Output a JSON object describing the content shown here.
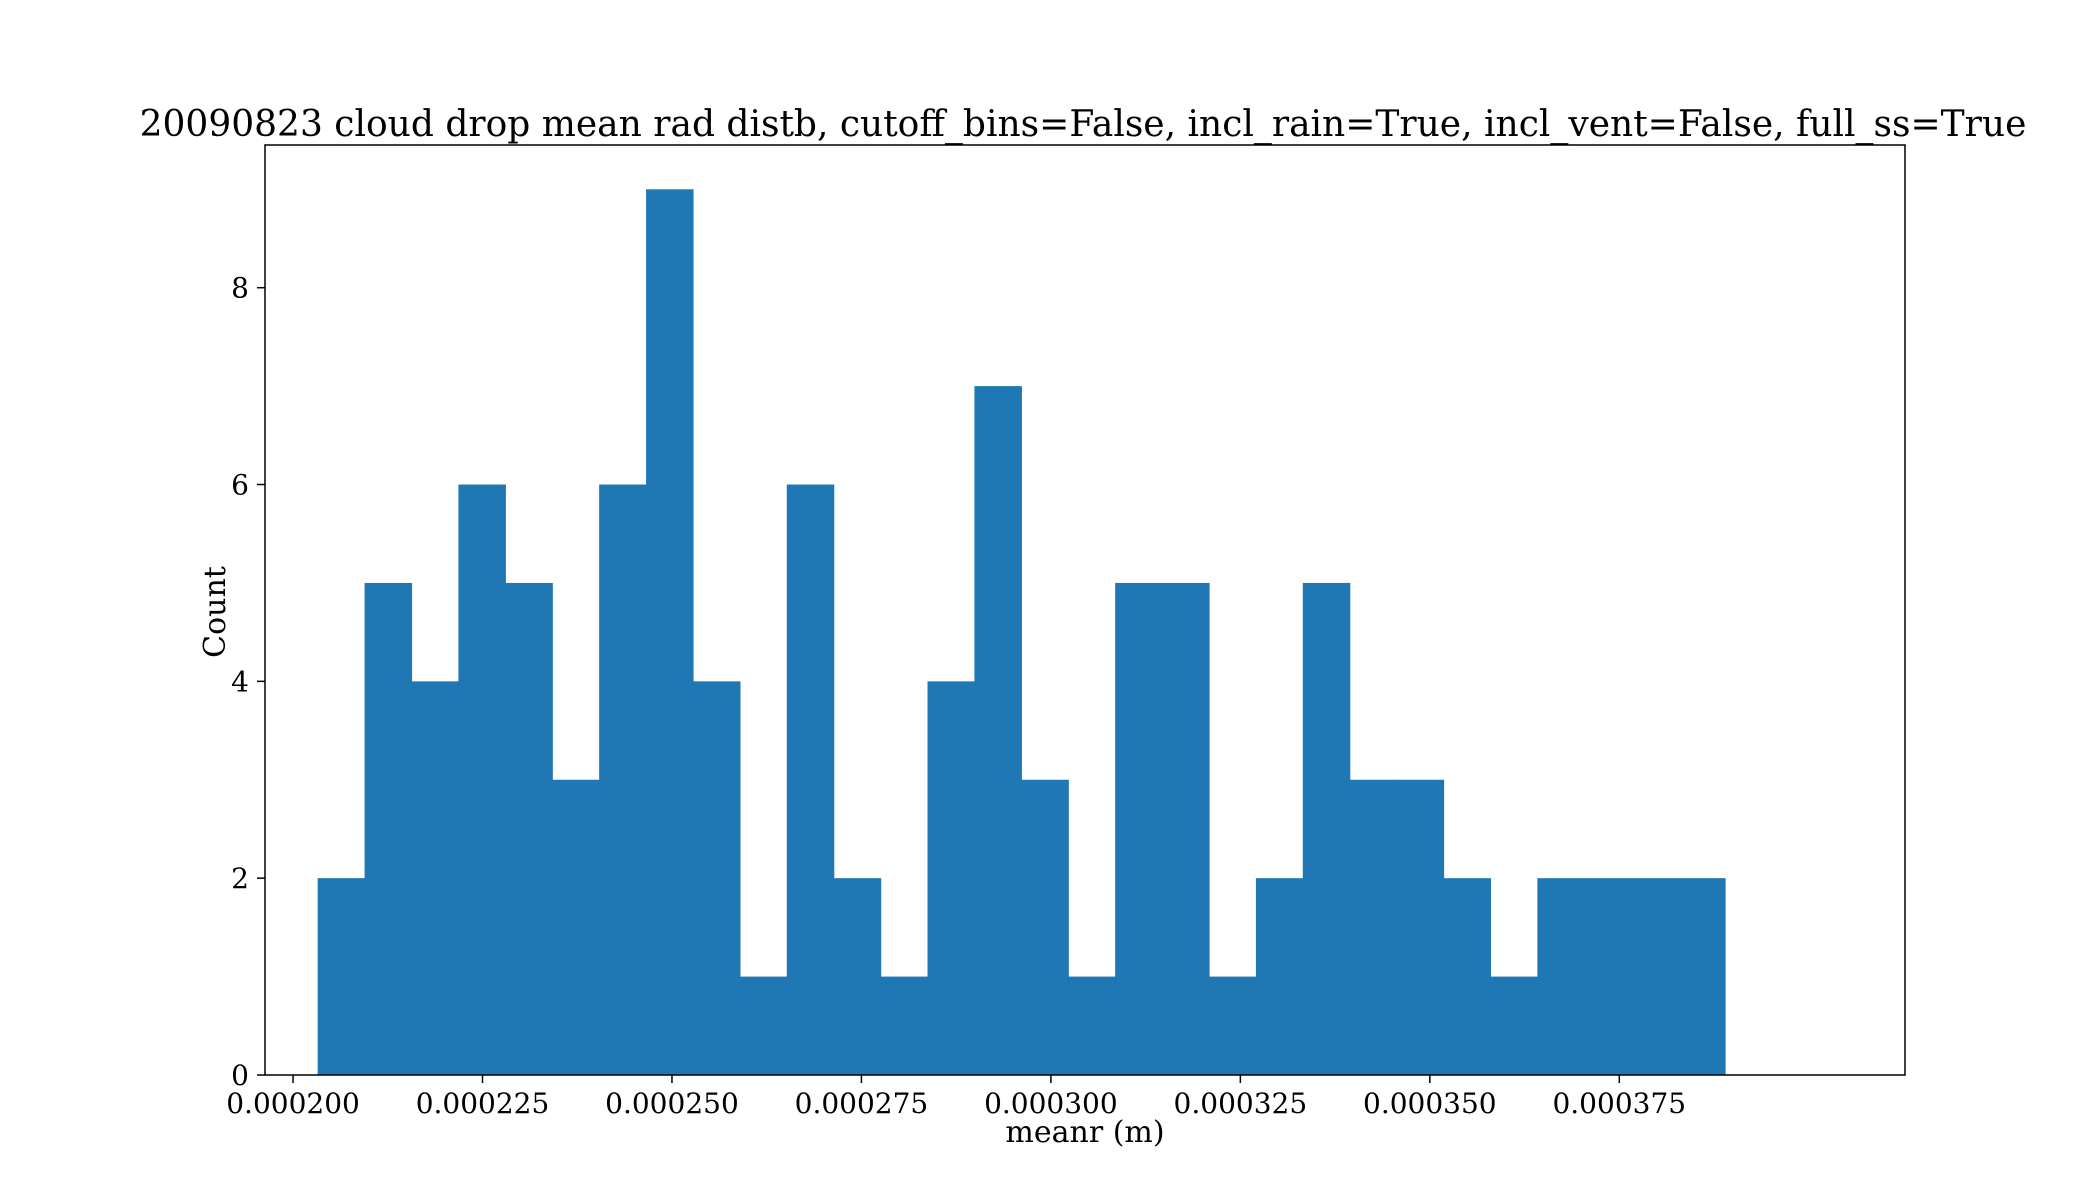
{
  "chart_data": {
    "type": "bar",
    "title": "20090823 cloud drop mean rad distb, cutoff_bins=False, incl_rain=True, incl_vent=False, full_ss=True",
    "xlabel": "meanr (m)",
    "ylabel": "Count",
    "xlim": [
      0.0001963,
      0.0004127
    ],
    "ylim": [
      0,
      9.45
    ],
    "grid": false,
    "colors": {
      "bar": "#1f77b4",
      "axes": "#000000"
    },
    "bins": {
      "start": 0.00020325,
      "width": 6.19e-06,
      "counts": [
        2,
        5,
        4,
        6,
        5,
        3,
        6,
        9,
        4,
        1,
        6,
        2,
        1,
        4,
        7,
        3,
        1,
        5,
        5,
        1,
        2,
        5,
        3,
        3,
        2,
        1,
        2,
        2,
        2,
        2
      ]
    },
    "x_ticks": [
      {
        "value": 0.0002,
        "label": "0.000200"
      },
      {
        "value": 0.000225,
        "label": "0.000225"
      },
      {
        "value": 0.00025,
        "label": "0.000250"
      },
      {
        "value": 0.000275,
        "label": "0.000275"
      },
      {
        "value": 0.0003,
        "label": "0.000300"
      },
      {
        "value": 0.000325,
        "label": "0.000325"
      },
      {
        "value": 0.00035,
        "label": "0.000350"
      },
      {
        "value": 0.000375,
        "label": "0.000375"
      }
    ],
    "y_ticks": [
      {
        "value": 0,
        "label": "0"
      },
      {
        "value": 2,
        "label": "2"
      },
      {
        "value": 4,
        "label": "4"
      },
      {
        "value": 6,
        "label": "6"
      },
      {
        "value": 8,
        "label": "8"
      }
    ]
  }
}
